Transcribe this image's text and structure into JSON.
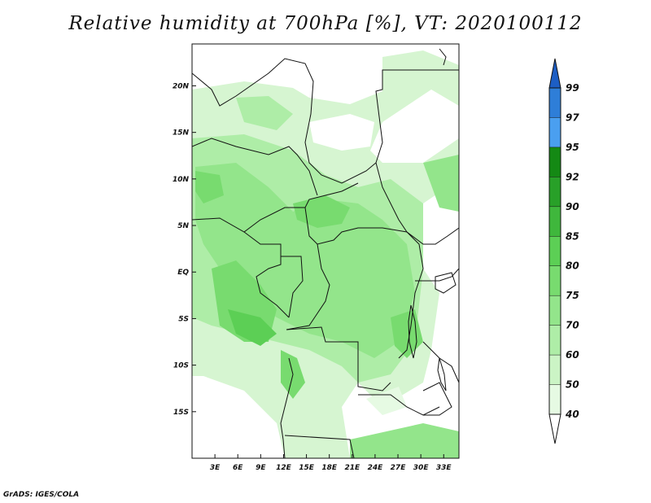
{
  "title": "Relative humidity at 700hPa [%], VT: 2020100112",
  "footer": "GrADS: IGES/COLA",
  "map": {
    "lon_range": [
      0,
      35
    ],
    "lat_range": [
      -20,
      24.5
    ],
    "lat_ticks": [
      {
        "v": 20,
        "label": "20N"
      },
      {
        "v": 15,
        "label": "15N"
      },
      {
        "v": 10,
        "label": "10N"
      },
      {
        "v": 5,
        "label": "5N"
      },
      {
        "v": 0,
        "label": "EQ"
      },
      {
        "v": -5,
        "label": "5S"
      },
      {
        "v": -10,
        "label": "10S"
      },
      {
        "v": -15,
        "label": "15S"
      }
    ],
    "lon_ticks": [
      {
        "v": 3,
        "label": "3E"
      },
      {
        "v": 6,
        "label": "6E"
      },
      {
        "v": 9,
        "label": "9E"
      },
      {
        "v": 12,
        "label": "12E"
      },
      {
        "v": 15,
        "label": "15E"
      },
      {
        "v": 18,
        "label": "18E"
      },
      {
        "v": 21,
        "label": "21E"
      },
      {
        "v": 24,
        "label": "24E"
      },
      {
        "v": 27,
        "label": "27E"
      },
      {
        "v": 30,
        "label": "30E"
      },
      {
        "v": 33,
        "label": "33E"
      }
    ]
  },
  "colorbar": {
    "levels": [
      "40",
      "50",
      "60",
      "70",
      "75",
      "80",
      "85",
      "90",
      "92",
      "95",
      "97",
      "99"
    ],
    "colors": [
      "#ffffff",
      "#e6fae3",
      "#cbf4c5",
      "#aeeda7",
      "#93e58b",
      "#78db6f",
      "#5ccf55",
      "#3fb73c",
      "#28a028",
      "#148914",
      "#4a9ff0",
      "#2e7ed8",
      "#1d5ec4"
    ]
  }
}
